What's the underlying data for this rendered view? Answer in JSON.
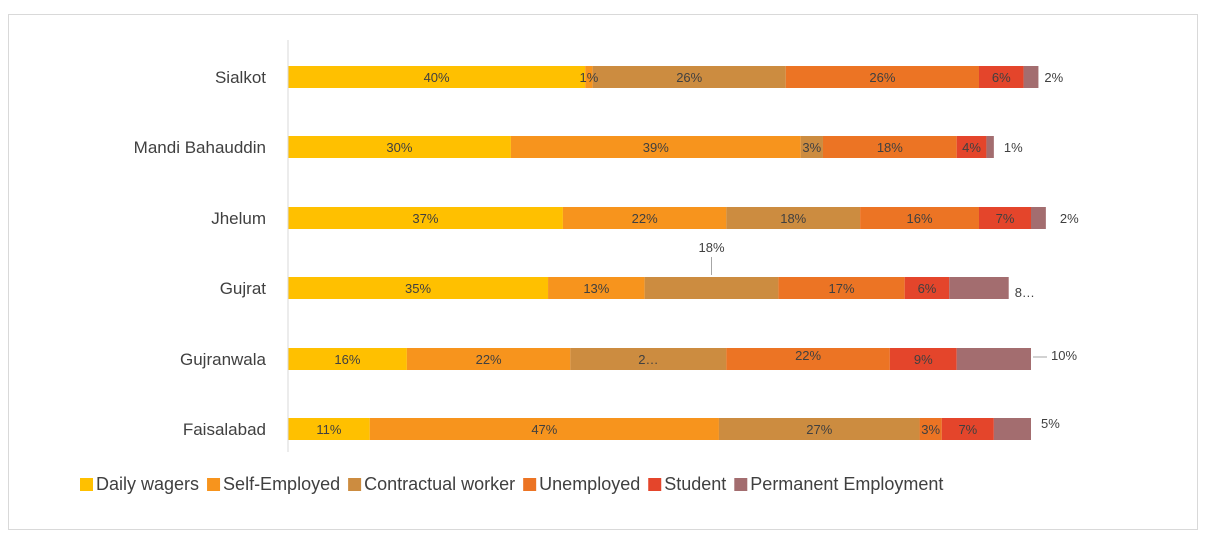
{
  "chart_data": {
    "type": "bar",
    "orientation": "horizontal",
    "stacked": true,
    "title": "",
    "xlabel": "",
    "ylabel": "",
    "xlim": [
      0,
      100
    ],
    "grid": false,
    "legend_position": "bottom",
    "categories": [
      "Sialkot",
      "Mandi Bahauddin",
      "Jhelum",
      "Gujrat",
      "Gujranwala",
      "Faisalabad"
    ],
    "series": [
      {
        "name": "Daily wagers",
        "color": "#FFC000",
        "values": [
          40,
          30,
          37,
          35,
          16,
          11
        ],
        "labels": [
          "40%",
          "30%",
          "37%",
          "35%",
          "16%",
          "11%"
        ]
      },
      {
        "name": "Self-Employed",
        "color": "#F7941D",
        "values": [
          1,
          39,
          22,
          13,
          22,
          47
        ],
        "labels": [
          "1%",
          "39%",
          "22%",
          "13%",
          "22%",
          "47%"
        ]
      },
      {
        "name": "Contractual worker",
        "color": "#CC8C40",
        "values": [
          26,
          3,
          18,
          18,
          21,
          27
        ],
        "labels": [
          "26%",
          "3%",
          "18%",
          "18%",
          "2…",
          "27%"
        ]
      },
      {
        "name": "Unemployed",
        "color": "#EC7424",
        "values": [
          26,
          18,
          16,
          17,
          22,
          3
        ],
        "labels": [
          "26%",
          "18%",
          "16%",
          "17%",
          "22%",
          "3%"
        ]
      },
      {
        "name": "Student",
        "color": "#E4452B",
        "values": [
          6,
          4,
          7,
          6,
          9,
          7
        ],
        "labels": [
          "6%",
          "4%",
          "7%",
          "6%",
          "9%",
          "7%"
        ]
      },
      {
        "name": "Permanent Employment",
        "color": "#A36D6F",
        "values": [
          2,
          1,
          2,
          8,
          10,
          5
        ],
        "labels": [
          "2%",
          "1%",
          "2%",
          "8…",
          "10%",
          "5%"
        ]
      }
    ]
  }
}
